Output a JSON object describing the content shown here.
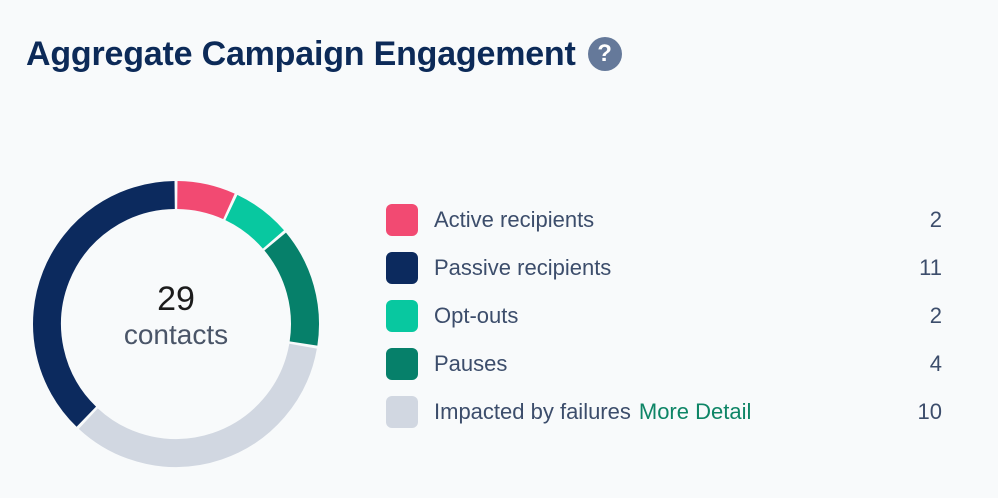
{
  "header": {
    "title": "Aggregate Campaign Engagement",
    "help_icon": "?"
  },
  "donut": {
    "total": "29",
    "unit": "contacts"
  },
  "legend": {
    "more_detail": "More Detail"
  },
  "colors": {
    "active": "#f24a72",
    "passive": "#0c2a5e",
    "optouts": "#08c8a0",
    "pauses": "#06806a",
    "failures": "#d1d7e1"
  },
  "chart_data": {
    "type": "pie",
    "donut": true,
    "total": 29,
    "categories": [
      "Active recipients",
      "Passive recipients",
      "Opt-outs",
      "Pauses",
      "Impacted by failures"
    ],
    "values": [
      2,
      11,
      2,
      4,
      10
    ],
    "colors": [
      "#f24a72",
      "#0c2a5e",
      "#08c8a0",
      "#06806a",
      "#d1d7e1"
    ],
    "draw_order": [
      0,
      2,
      3,
      4,
      1
    ],
    "legend_position": "right"
  }
}
